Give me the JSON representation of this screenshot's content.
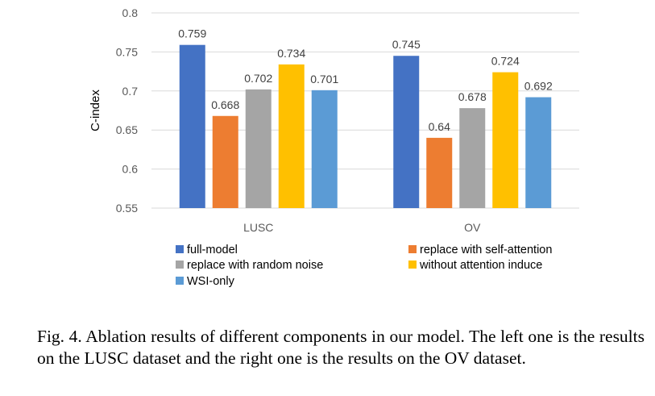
{
  "chart_data": {
    "type": "bar",
    "ylabel": "C-index",
    "xlabel": "",
    "ylim": [
      0.55,
      0.8
    ],
    "yticks": [
      "0.55",
      "0.6",
      "0.65",
      "0.7",
      "0.75",
      "0.8"
    ],
    "categories": [
      "LUSC",
      "OV"
    ],
    "grid": true,
    "legend_position": "bottom",
    "series": [
      {
        "name": "full-model",
        "color": "#4472C4",
        "values": [
          0.759,
          0.745
        ],
        "labels": [
          "0.759",
          "0.745"
        ]
      },
      {
        "name": "replace with self-attention",
        "color": "#ED7D31",
        "values": [
          0.668,
          0.64
        ],
        "labels": [
          "0.668",
          "0.64"
        ]
      },
      {
        "name": "replace with random noise",
        "color": "#A5A5A5",
        "values": [
          0.702,
          0.678
        ],
        "labels": [
          "0.702",
          "0.678"
        ]
      },
      {
        "name": "without attention induce",
        "color": "#FFC000",
        "values": [
          0.734,
          0.724
        ],
        "labels": [
          "0.734",
          "0.724"
        ]
      },
      {
        "name": "WSI-only",
        "color": "#5B9BD5",
        "values": [
          0.701,
          0.692
        ],
        "labels": [
          "0.701",
          "0.692"
        ]
      }
    ]
  },
  "caption": {
    "text": "Fig. 4.  Ablation results of different components in our model. The left one is the results on the LUSC dataset and the right one is the results on the OV dataset."
  }
}
